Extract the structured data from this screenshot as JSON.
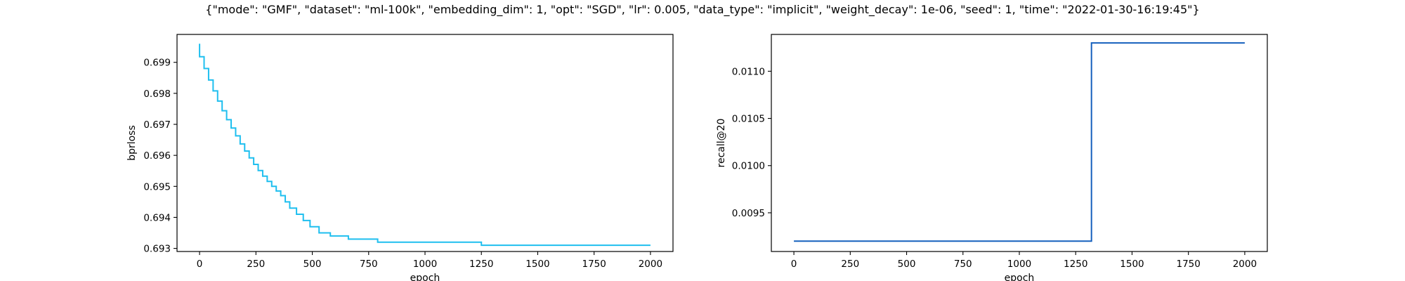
{
  "suptitle": "{\"mode\": \"GMF\", \"dataset\": \"ml-100k\", \"embedding_dim\": 1, \"opt\": \"SGD\", \"lr\": 0.005, \"data_type\": \"implicit\", \"weight_decay\": 1e-06, \"seed\": 1, \"time\": \"2022-01-30-16:19:45\"}",
  "chart_data": [
    {
      "type": "line",
      "title": "",
      "xlabel": "epoch",
      "ylabel": "bprloss",
      "xlim": [
        -100,
        2100
      ],
      "ylim": [
        0.6929,
        0.6999
      ],
      "xticks": [
        0,
        250,
        500,
        750,
        1000,
        1250,
        1500,
        1750,
        2000
      ],
      "xtick_labels": [
        "0",
        "250",
        "500",
        "750",
        "1000",
        "1250",
        "1500",
        "1750",
        "2000"
      ],
      "yticks": [
        0.693,
        0.694,
        0.695,
        0.696,
        0.697,
        0.698,
        0.699
      ],
      "ytick_labels": [
        "0.693",
        "0.694",
        "0.695",
        "0.696",
        "0.697",
        "0.698",
        "0.699"
      ],
      "grid": false,
      "series": [
        {
          "color": "#1fbfef",
          "step": true,
          "x": [
            0,
            20,
            40,
            60,
            80,
            100,
            120,
            140,
            160,
            180,
            200,
            220,
            240,
            260,
            280,
            300,
            320,
            340,
            360,
            380,
            400,
            430,
            460,
            490,
            530,
            580,
            660,
            790,
            1250,
            2000
          ],
          "y": [
            0.6996,
            0.69918,
            0.6988,
            0.69843,
            0.69808,
            0.69775,
            0.69744,
            0.69715,
            0.69688,
            0.69663,
            0.69637,
            0.69614,
            0.69592,
            0.69571,
            0.69551,
            0.69533,
            0.69516,
            0.695,
            0.69485,
            0.6947,
            0.6945,
            0.6943,
            0.6941,
            0.6939,
            0.6937,
            0.6935,
            0.6934,
            0.6933,
            0.6932,
            0.6931
          ]
        }
      ]
    },
    {
      "type": "line",
      "title": "",
      "xlabel": "epoch",
      "ylabel": "recall@20",
      "xlim": [
        -100,
        2100
      ],
      "ylim": [
        0.00909,
        0.01139
      ],
      "xticks": [
        0,
        250,
        500,
        750,
        1000,
        1250,
        1500,
        1750,
        2000
      ],
      "xtick_labels": [
        "0",
        "250",
        "500",
        "750",
        "1000",
        "1250",
        "1500",
        "1750",
        "2000"
      ],
      "yticks": [
        0.0095,
        0.01,
        0.0105,
        0.011
      ],
      "ytick_labels": [
        "0.0095",
        "0.0100",
        "0.0105",
        "0.0110"
      ],
      "grid": false,
      "series": [
        {
          "color": "#1560bd",
          "step": true,
          "x": [
            0,
            1320,
            1321,
            2000
          ],
          "y": [
            0.0092,
            0.0092,
            0.0113,
            0.0113
          ]
        }
      ]
    }
  ]
}
